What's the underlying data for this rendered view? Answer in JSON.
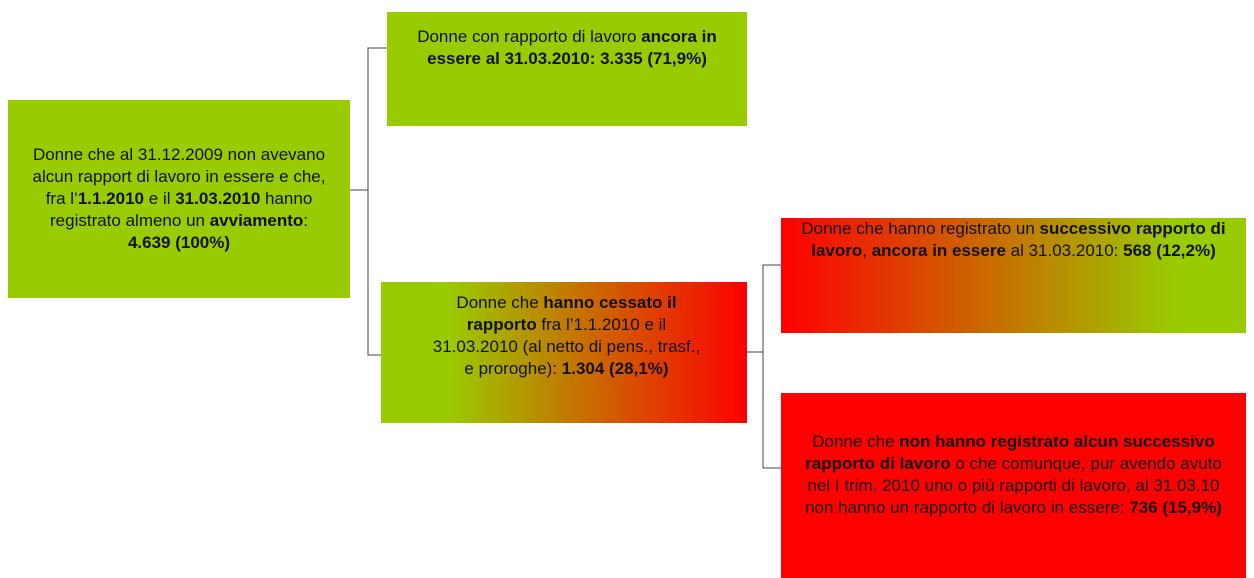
{
  "nodes": [
    {
      "parts": [
        {
          "text": "Donne che al 31.12.2009 non avevano alcun rapport di lavoro in essere e che, fra l’"
        },
        {
          "text": "1.1.2010",
          "bold": true
        },
        {
          "text": " e il "
        },
        {
          "text": "31.03.2010",
          "bold": true
        },
        {
          "text": " hanno registrato almeno un "
        },
        {
          "text": "avviamento",
          "bold": true
        },
        {
          "text": ": "
        },
        {
          "text": "4.639 (100%)",
          "bold": true
        }
      ]
    },
    {
      "parts": [
        {
          "text": "Donne con rapporto di lavoro "
        },
        {
          "text": "ancora in essere al 31.03.2010: 3.335 (71,9%)",
          "bold": true
        }
      ]
    },
    {
      "parts": [
        {
          "text": "Donne che "
        },
        {
          "text": "hanno cessato il rapporto",
          "bold": true
        },
        {
          "text": " fra l’1.1.2010 e il 31.03.2010 (al netto di pens., trasf., e proroghe): "
        },
        {
          "text": "1.304 (28,1%)",
          "bold": true
        }
      ]
    },
    {
      "parts": [
        {
          "text": "Donne che hanno registrato un "
        },
        {
          "text": "successivo rapporto di lavoro",
          "bold": true
        },
        {
          "text": ", "
        },
        {
          "text": "ancora in essere",
          "bold": true
        },
        {
          "text": " al 31.03.2010: "
        },
        {
          "text": "568 (12,2%)",
          "bold": true
        }
      ]
    },
    {
      "parts": [
        {
          "text": "Donne che "
        },
        {
          "text": "non hanno registrato alcun successivo rapporto di lavoro",
          "bold": true
        },
        {
          "text": " o che comunque, pur avendo avuto nel I trim. 2010 uno o più rapporti di lavoro, al 31.03.10 non hanno un rapporto di lavoro in essere: "
        },
        {
          "text": "736 (15,9%)",
          "bold": true
        }
      ]
    }
  ]
}
